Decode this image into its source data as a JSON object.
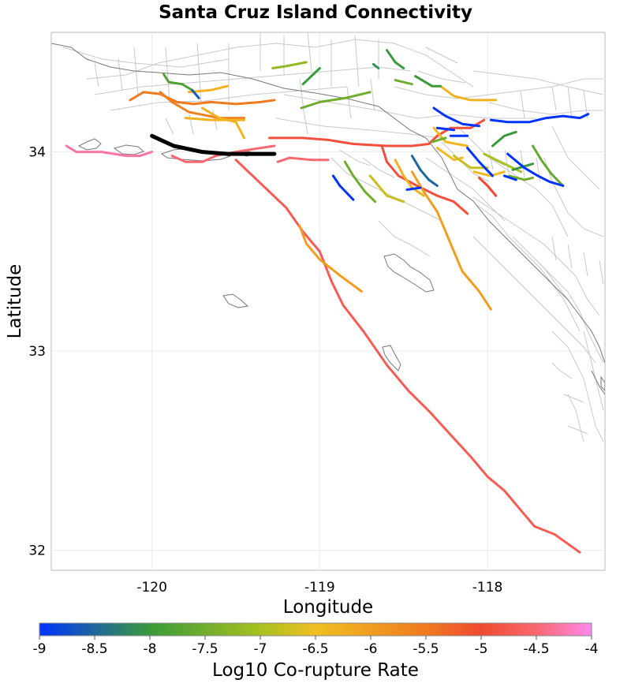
{
  "chart_data": {
    "type": "map",
    "title": "Santa Cruz Island Connectivity",
    "xlabel": "Longitude",
    "ylabel": "Latitude",
    "xlim": [
      -120.6,
      -117.3
    ],
    "ylim": [
      31.9,
      34.6
    ],
    "x_ticks": [
      {
        "value": -120,
        "label": "-120"
      },
      {
        "value": -119,
        "label": "-119"
      },
      {
        "value": -118,
        "label": "-118"
      }
    ],
    "y_ticks": [
      {
        "value": 32,
        "label": "32"
      },
      {
        "value": 33,
        "label": "33"
      },
      {
        "value": 34,
        "label": "34"
      }
    ],
    "grid": true,
    "colorbar": {
      "label": "Log10 Co-rupture Rate",
      "range": [
        -9,
        -4
      ],
      "stops": [
        {
          "value": -9,
          "color": "#0033ff"
        },
        {
          "value": -8,
          "color": "#3a9a3a"
        },
        {
          "value": -7,
          "color": "#a8c020"
        },
        {
          "value": -6.5,
          "color": "#f0c020"
        },
        {
          "value": -5.5,
          "color": "#f07a20"
        },
        {
          "value": -5,
          "color": "#f04a30"
        },
        {
          "value": -4.5,
          "color": "#f86870"
        },
        {
          "value": -4,
          "color": "#ff88ee"
        }
      ],
      "ticks": [
        {
          "value": -9,
          "label": "-9"
        },
        {
          "value": -8.5,
          "label": "-8.5"
        },
        {
          "value": -8,
          "label": "-8"
        },
        {
          "value": -7.5,
          "label": "-7.5"
        },
        {
          "value": -7,
          "label": "-7"
        },
        {
          "value": -6.5,
          "label": "-6.5"
        },
        {
          "value": -6,
          "label": "-6"
        },
        {
          "value": -5.5,
          "label": "-5.5"
        },
        {
          "value": -5,
          "label": "-5"
        },
        {
          "value": -4.5,
          "label": "-4.5"
        },
        {
          "value": -4,
          "label": "-4"
        }
      ]
    },
    "source_fault": {
      "color": "#000000",
      "points": [
        [
          -120.0,
          34.08
        ],
        [
          -119.87,
          34.03
        ],
        [
          -119.7,
          34.0
        ],
        [
          -119.55,
          33.99
        ],
        [
          -119.4,
          33.99
        ],
        [
          -119.27,
          33.99
        ]
      ]
    },
    "ruptures": [
      {
        "rate": -4.3,
        "points": [
          [
            -120.51,
            34.03
          ],
          [
            -120.45,
            34.0
          ],
          [
            -120.3,
            34.0
          ],
          [
            -120.15,
            33.98
          ],
          [
            -120.07,
            33.98
          ],
          [
            -120.0,
            34.0
          ]
        ]
      },
      {
        "rate": -4.5,
        "points": [
          [
            -119.88,
            33.98
          ],
          [
            -119.8,
            33.95
          ],
          [
            -119.7,
            33.95
          ],
          [
            -119.62,
            33.98
          ],
          [
            -119.5,
            34.0
          ],
          [
            -119.35,
            34.02
          ],
          [
            -119.27,
            34.03
          ]
        ]
      },
      {
        "rate": -4.5,
        "points": [
          [
            -119.25,
            33.95
          ],
          [
            -119.18,
            33.97
          ],
          [
            -119.05,
            33.96
          ],
          [
            -118.95,
            33.96
          ]
        ]
      },
      {
        "rate": -4.7,
        "points": [
          [
            -119.5,
            33.96
          ],
          [
            -119.4,
            33.88
          ],
          [
            -119.3,
            33.8
          ],
          [
            -119.2,
            33.72
          ],
          [
            -119.1,
            33.6
          ],
          [
            -119.0,
            33.5
          ],
          [
            -118.93,
            33.35
          ],
          [
            -118.86,
            33.23
          ],
          [
            -118.74,
            33.1
          ],
          [
            -118.6,
            32.93
          ],
          [
            -118.47,
            32.8
          ],
          [
            -118.35,
            32.7
          ],
          [
            -118.22,
            32.58
          ],
          [
            -118.1,
            32.47
          ],
          [
            -118.0,
            32.37
          ],
          [
            -117.9,
            32.3
          ],
          [
            -117.8,
            32.2
          ],
          [
            -117.72,
            32.12
          ],
          [
            -117.6,
            32.08
          ],
          [
            -117.5,
            32.02
          ],
          [
            -117.45,
            31.99
          ]
        ]
      },
      {
        "rate": -4.9,
        "points": [
          [
            -119.3,
            34.07
          ],
          [
            -119.1,
            34.07
          ],
          [
            -118.95,
            34.06
          ],
          [
            -118.8,
            34.04
          ],
          [
            -118.6,
            34.03
          ],
          [
            -118.45,
            34.03
          ],
          [
            -118.35,
            34.04
          ],
          [
            -118.3,
            34.08
          ],
          [
            -118.22,
            34.12
          ],
          [
            -118.1,
            34.12
          ],
          [
            -118.02,
            34.16
          ]
        ]
      },
      {
        "rate": -4.9,
        "points": [
          [
            -118.63,
            34.03
          ],
          [
            -118.6,
            33.95
          ],
          [
            -118.53,
            33.88
          ],
          [
            -118.42,
            33.83
          ],
          [
            -118.3,
            33.78
          ],
          [
            -118.2,
            33.75
          ],
          [
            -118.12,
            33.69
          ]
        ]
      },
      {
        "rate": -5.0,
        "points": [
          [
            -118.05,
            33.87
          ],
          [
            -118.0,
            33.83
          ],
          [
            -117.95,
            33.78
          ]
        ]
      },
      {
        "rate": -5.5,
        "points": [
          [
            -120.13,
            34.26
          ],
          [
            -120.05,
            34.3
          ],
          [
            -119.95,
            34.29
          ],
          [
            -119.85,
            34.25
          ],
          [
            -119.75,
            34.24
          ],
          [
            -119.65,
            34.25
          ],
          [
            -119.5,
            34.24
          ],
          [
            -119.35,
            34.25
          ],
          [
            -119.27,
            34.26
          ]
        ]
      },
      {
        "rate": -5.6,
        "points": [
          [
            -119.95,
            34.3
          ],
          [
            -119.88,
            34.25
          ],
          [
            -119.78,
            34.2
          ],
          [
            -119.6,
            34.17
          ],
          [
            -119.45,
            34.17
          ]
        ]
      },
      {
        "rate": -6.0,
        "points": [
          [
            -119.12,
            33.63
          ],
          [
            -119.08,
            33.54
          ],
          [
            -119.0,
            33.46
          ],
          [
            -118.88,
            33.38
          ],
          [
            -118.75,
            33.3
          ]
        ]
      },
      {
        "rate": -6.0,
        "points": [
          [
            -118.45,
            33.9
          ],
          [
            -118.38,
            33.8
          ],
          [
            -118.3,
            33.7
          ],
          [
            -118.25,
            33.6
          ],
          [
            -118.2,
            33.5
          ],
          [
            -118.15,
            33.4
          ],
          [
            -118.05,
            33.3
          ],
          [
            -117.98,
            33.21
          ]
        ]
      },
      {
        "rate": -6.3,
        "points": [
          [
            -119.7,
            34.22
          ],
          [
            -119.6,
            34.17
          ],
          [
            -119.5,
            34.15
          ],
          [
            -119.45,
            34.07
          ]
        ]
      },
      {
        "rate": -6.3,
        "points": [
          [
            -119.8,
            34.17
          ],
          [
            -119.65,
            34.16
          ],
          [
            -119.45,
            34.16
          ]
        ]
      },
      {
        "rate": -6.3,
        "points": [
          [
            -119.78,
            34.3
          ],
          [
            -119.65,
            34.31
          ],
          [
            -119.55,
            34.33
          ]
        ]
      },
      {
        "rate": -6.3,
        "points": [
          [
            -118.28,
            34.33
          ],
          [
            -118.2,
            34.28
          ],
          [
            -118.1,
            34.26
          ],
          [
            -117.95,
            34.26
          ]
        ]
      },
      {
        "rate": -6.3,
        "points": [
          [
            -118.55,
            33.96
          ],
          [
            -118.5,
            33.88
          ],
          [
            -118.45,
            33.82
          ],
          [
            -118.38,
            33.78
          ]
        ]
      },
      {
        "rate": -6.4,
        "points": [
          [
            -118.32,
            34.12
          ],
          [
            -118.25,
            34.05
          ],
          [
            -118.12,
            34.03
          ]
        ]
      },
      {
        "rate": -6.4,
        "points": [
          [
            -118.3,
            34.02
          ],
          [
            -118.2,
            33.96
          ],
          [
            -118.15,
            33.97
          ]
        ]
      },
      {
        "rate": -6.4,
        "points": [
          [
            -118.08,
            33.9
          ],
          [
            -117.98,
            33.88
          ],
          [
            -117.9,
            33.9
          ]
        ]
      },
      {
        "rate": -6.8,
        "points": [
          [
            -118.7,
            33.88
          ],
          [
            -118.6,
            33.78
          ],
          [
            -118.5,
            33.75
          ]
        ]
      },
      {
        "rate": -6.8,
        "points": [
          [
            -118.2,
            33.98
          ],
          [
            -118.1,
            33.92
          ],
          [
            -118.0,
            33.92
          ]
        ]
      },
      {
        "rate": -7.0,
        "points": [
          [
            -118.02,
            33.99
          ],
          [
            -117.9,
            33.94
          ],
          [
            -117.8,
            33.9
          ]
        ]
      },
      {
        "rate": -7.2,
        "points": [
          [
            -119.28,
            34.42
          ],
          [
            -119.2,
            34.43
          ],
          [
            -119.08,
            34.45
          ]
        ]
      },
      {
        "rate": -7.5,
        "points": [
          [
            -118.85,
            33.95
          ],
          [
            -118.8,
            33.88
          ],
          [
            -118.73,
            33.8
          ],
          [
            -118.67,
            33.75
          ]
        ]
      },
      {
        "rate": -7.5,
        "points": [
          [
            -119.11,
            34.22
          ],
          [
            -119.0,
            34.25
          ],
          [
            -118.85,
            34.27
          ],
          [
            -118.7,
            34.3
          ]
        ]
      },
      {
        "rate": -7.5,
        "points": [
          [
            -118.55,
            34.36
          ],
          [
            -118.45,
            34.34
          ]
        ]
      },
      {
        "rate": -7.5,
        "points": [
          [
            -118.33,
            34.05
          ],
          [
            -118.25,
            34.07
          ]
        ]
      },
      {
        "rate": -7.5,
        "points": [
          [
            -117.87,
            33.88
          ],
          [
            -117.78,
            33.86
          ],
          [
            -117.73,
            33.87
          ]
        ]
      },
      {
        "rate": -7.6,
        "points": [
          [
            -117.73,
            34.03
          ],
          [
            -117.68,
            33.96
          ],
          [
            -117.62,
            33.89
          ],
          [
            -117.55,
            33.83
          ]
        ]
      },
      {
        "rate": -7.8,
        "points": [
          [
            -119.93,
            34.39
          ],
          [
            -119.9,
            34.35
          ],
          [
            -119.82,
            34.34
          ],
          [
            -119.76,
            34.31
          ]
        ]
      },
      {
        "rate": -8.0,
        "points": [
          [
            -118.6,
            34.51
          ],
          [
            -118.55,
            34.45
          ],
          [
            -118.5,
            34.42
          ]
        ]
      },
      {
        "rate": -8.0,
        "points": [
          [
            -118.43,
            34.38
          ],
          [
            -118.33,
            34.33
          ],
          [
            -118.28,
            34.33
          ]
        ]
      },
      {
        "rate": -8.0,
        "points": [
          [
            -119.1,
            34.34
          ],
          [
            -119.0,
            34.42
          ]
        ]
      },
      {
        "rate": -8.0,
        "points": [
          [
            -117.97,
            34.03
          ],
          [
            -117.9,
            34.08
          ],
          [
            -117.83,
            34.1
          ]
        ]
      },
      {
        "rate": -8.0,
        "points": [
          [
            -117.85,
            33.91
          ],
          [
            -117.73,
            33.94
          ]
        ]
      },
      {
        "rate": -8.1,
        "points": [
          [
            -118.68,
            34.44
          ],
          [
            -118.65,
            34.42
          ]
        ]
      },
      {
        "rate": -8.5,
        "points": [
          [
            -118.45,
            33.98
          ],
          [
            -118.4,
            33.91
          ],
          [
            -118.35,
            33.86
          ],
          [
            -118.3,
            33.83
          ]
        ]
      },
      {
        "rate": -8.6,
        "points": [
          [
            -119.76,
            34.31
          ],
          [
            -119.72,
            34.27
          ]
        ]
      },
      {
        "rate": -9.0,
        "points": [
          [
            -118.92,
            33.88
          ],
          [
            -118.88,
            33.83
          ],
          [
            -118.8,
            33.76
          ]
        ]
      },
      {
        "rate": -9.0,
        "points": [
          [
            -118.48,
            33.81
          ],
          [
            -118.4,
            33.82
          ]
        ]
      },
      {
        "rate": -9.0,
        "points": [
          [
            -118.32,
            34.22
          ],
          [
            -118.25,
            34.18
          ],
          [
            -118.15,
            34.14
          ],
          [
            -118.05,
            34.13
          ]
        ]
      },
      {
        "rate": -9.0,
        "points": [
          [
            -118.3,
            34.12
          ],
          [
            -118.2,
            34.11
          ]
        ]
      },
      {
        "rate": -9.0,
        "points": [
          [
            -118.22,
            34.08
          ],
          [
            -118.12,
            34.08
          ]
        ]
      },
      {
        "rate": -9.0,
        "points": [
          [
            -118.12,
            34.02
          ],
          [
            -118.05,
            33.95
          ],
          [
            -117.97,
            33.88
          ]
        ]
      },
      {
        "rate": -9.0,
        "points": [
          [
            -117.98,
            34.16
          ],
          [
            -117.88,
            34.15
          ],
          [
            -117.75,
            34.15
          ],
          [
            -117.65,
            34.17
          ],
          [
            -117.55,
            34.18
          ],
          [
            -117.45,
            34.17
          ],
          [
            -117.4,
            34.19
          ]
        ]
      },
      {
        "rate": -9.0,
        "points": [
          [
            -117.88,
            33.99
          ],
          [
            -117.78,
            33.92
          ],
          [
            -117.7,
            33.88
          ],
          [
            -117.63,
            33.85
          ],
          [
            -117.55,
            33.83
          ]
        ]
      },
      {
        "rate": -9.0,
        "points": [
          [
            -117.9,
            33.88
          ],
          [
            -117.83,
            33.86
          ]
        ]
      }
    ]
  }
}
